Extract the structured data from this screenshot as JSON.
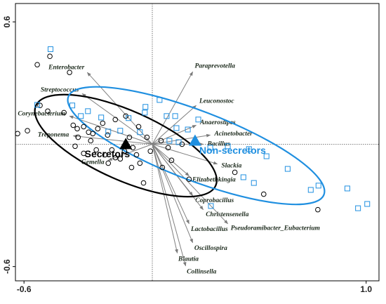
{
  "chart_data": {
    "type": "biplot",
    "xlim": [
      -0.64,
      1.06
    ],
    "ylim": [
      -0.67,
      0.69
    ],
    "xticks": [
      -0.6,
      {
        "value": 1,
        "label": "1.0"
      }
    ],
    "yticks": [
      -0.6,
      0.6
    ],
    "groups": [
      {
        "name": "Secretors",
        "color": "#000000",
        "marker": "circle",
        "x": [
          -0.538,
          -0.479,
          -0.387,
          -0.525,
          -0.584,
          -0.63,
          -0.489,
          -0.413,
          -0.37,
          -0.351,
          -0.321,
          -0.298,
          -0.278,
          -0.255,
          -0.232,
          -0.209,
          -0.288,
          -0.361,
          -0.321,
          -0.262,
          -0.222,
          -0.189,
          -0.173,
          -0.15,
          -0.13,
          -0.107,
          -0.091,
          -0.074,
          -0.058,
          -0.041,
          -0.025,
          -0.009,
          -0.064,
          -0.124,
          -0.173,
          0.139,
          0.09,
          0.047,
          0.172,
          0.386,
          0.521,
          0.774,
          -0.347,
          -0.206,
          -0.097,
          0.041,
          0.074
        ],
        "y": [
          0.39,
          0.431,
          0.352,
          0.19,
          0.066,
          0.052,
          0.162,
          0.155,
          0.093,
          0.076,
          0.086,
          0.059,
          0.052,
          0.076,
          0.103,
          0.045,
          0.017,
          -0.01,
          -0.045,
          -0.028,
          -0.052,
          -0.028,
          -0.066,
          -0.072,
          -0.034,
          0.034,
          -0.017,
          -0.052,
          -0.093,
          -0.19,
          0.034,
          -0.034,
          0.086,
          0.138,
          0.121,
          0,
          -0.079,
          -0.114,
          -0.172,
          -0.138,
          -0.245,
          -0.321,
          0.034,
          -0.093,
          -0.114,
          0.017,
          -0.017
        ],
        "centroid": {
          "x": -0.124,
          "y": 0.0
        },
        "ellipse": {
          "cx": -0.124,
          "cy": -0.007,
          "rx": 0.46,
          "ry": 0.17,
          "angle": 24
        }
      },
      {
        "name": "Non-secretors",
        "color": "#1f8fe0",
        "marker": "square",
        "x": [
          -0.476,
          -0.538,
          -0.374,
          -0.301,
          -0.334,
          -0.239,
          -0.032,
          -0.035,
          0.034,
          -0.111,
          -0.15,
          -0.206,
          -0.058,
          0.107,
          0.166,
          0.215,
          0.113,
          0.08,
          0.271,
          0.353,
          0.452,
          0.534,
          0.633,
          0.426,
          0.475,
          0.741,
          0.777,
          0.912,
          0.962,
          1.005,
          0.274,
          0.067,
          0.123
        ],
        "y": [
          0.466,
          0.193,
          0.19,
          0.162,
          0.138,
          0.131,
          0.183,
          0.155,
          0.217,
          0.128,
          0.066,
          0.062,
          0.059,
          0.138,
          0.072,
          0.121,
          0.079,
          0.017,
          -0.017,
          -0.01,
          -0.024,
          -0.059,
          -0.121,
          -0.162,
          -0.19,
          -0.224,
          -0.203,
          -0.217,
          -0.314,
          -0.293,
          -0.303,
          0.138,
          0.01
        ],
        "centroid": {
          "x": 0.2,
          "y": 0.017
        },
        "ellipse": {
          "cx": 0.205,
          "cy": -0.007,
          "rx": 0.64,
          "ry": 0.17,
          "angle": 21
        }
      }
    ],
    "vectors": {
      "color": "#808080",
      "names": [
        "Enterobacter",
        "Paraprevotella",
        "Streptococcus",
        "Corynebacterium",
        "Treponema",
        "Gemella",
        "Leuconostoc",
        "Anaerostipes",
        "Acinetobacter",
        "Bacillus",
        "Slackia",
        "Elizabethkingia",
        "Coprobacillus",
        "Christensenella",
        "Pseudoramibacter_Eubacterium",
        "Lactobacillus",
        "Oscillospira",
        "Blautia",
        "Collinsella"
      ],
      "x": [
        -0.304,
        0.189,
        -0.328,
        -0.387,
        -0.37,
        -0.206,
        0.205,
        0.205,
        0.271,
        0.238,
        0.304,
        0.172,
        0.189,
        0.238,
        0.353,
        0.172,
        0.189,
        0.117,
        0.156
      ],
      "y": [
        0.352,
        0.355,
        0.248,
        0.138,
        0.041,
        -0.079,
        0.19,
        0.093,
        0.045,
        0.0,
        -0.097,
        -0.155,
        -0.252,
        -0.321,
        -0.39,
        -0.39,
        -0.483,
        -0.534,
        -0.597
      ]
    }
  }
}
